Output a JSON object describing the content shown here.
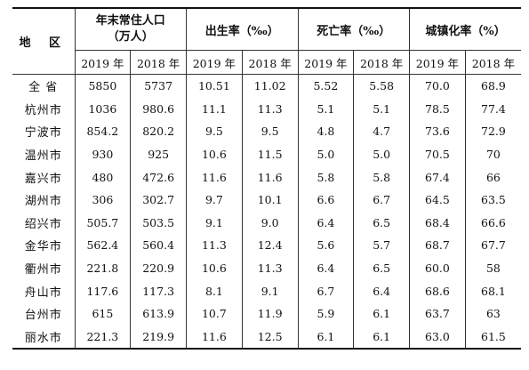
{
  "header": {
    "region": "地 区",
    "groups": [
      {
        "line1": "年末常住人口",
        "line2": "（万人）"
      },
      {
        "line1": "出生率（‰）",
        "line2": ""
      },
      {
        "line1": "死亡率（‰）",
        "line2": ""
      },
      {
        "line1": "城镇化率（%）",
        "line2": ""
      }
    ],
    "years": [
      "2019 年",
      "2018 年"
    ]
  },
  "rows": [
    {
      "region": "全 省",
      "v": [
        "5850",
        "5737",
        "10.51",
        "11.02",
        "5.52",
        "5.58",
        "70.0",
        "68.9"
      ]
    },
    {
      "region": "杭州市",
      "v": [
        "1036",
        "980.6",
        "11.1",
        "11.3",
        "5.1",
        "5.1",
        "78.5",
        "77.4"
      ]
    },
    {
      "region": "宁波市",
      "v": [
        "854.2",
        "820.2",
        "9.5",
        "9.5",
        "4.8",
        "4.7",
        "73.6",
        "72.9"
      ]
    },
    {
      "region": "温州市",
      "v": [
        "930",
        "925",
        "10.6",
        "11.5",
        "5.0",
        "5.0",
        "70.5",
        "70"
      ]
    },
    {
      "region": "嘉兴市",
      "v": [
        "480",
        "472.6",
        "11.6",
        "11.6",
        "5.8",
        "5.8",
        "67.4",
        "66"
      ]
    },
    {
      "region": "湖州市",
      "v": [
        "306",
        "302.7",
        "9.7",
        "10.1",
        "6.6",
        "6.7",
        "64.5",
        "63.5"
      ]
    },
    {
      "region": "绍兴市",
      "v": [
        "505.7",
        "503.5",
        "9.1",
        "9.0",
        "6.4",
        "6.5",
        "68.4",
        "66.6"
      ]
    },
    {
      "region": "金华市",
      "v": [
        "562.4",
        "560.4",
        "11.3",
        "12.4",
        "5.6",
        "5.7",
        "68.7",
        "67.7"
      ]
    },
    {
      "region": "衢州市",
      "v": [
        "221.8",
        "220.9",
        "10.6",
        "11.3",
        "6.4",
        "6.5",
        "60.0",
        "58"
      ]
    },
    {
      "region": "舟山市",
      "v": [
        "117.6",
        "117.3",
        "8.1",
        "9.1",
        "6.7",
        "6.4",
        "68.6",
        "68.1"
      ]
    },
    {
      "region": "台州市",
      "v": [
        "615",
        "613.9",
        "10.7",
        "11.9",
        "5.9",
        "6.1",
        "63.7",
        "63"
      ]
    },
    {
      "region": "丽水市",
      "v": [
        "221.3",
        "219.9",
        "11.6",
        "12.5",
        "6.1",
        "6.1",
        "63.0",
        "61.5"
      ]
    }
  ]
}
